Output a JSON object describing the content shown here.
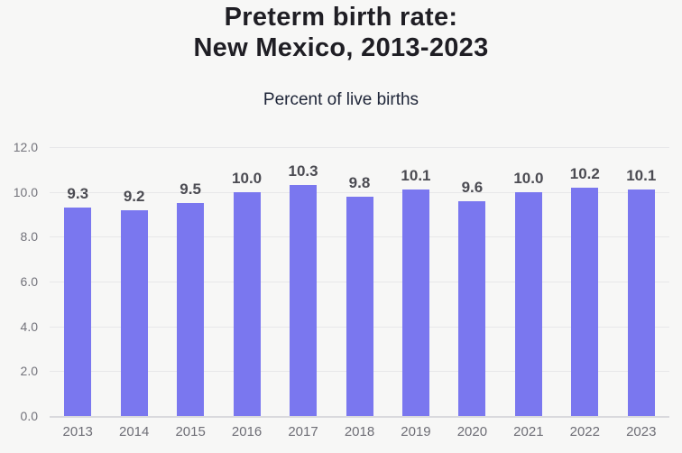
{
  "title": {
    "line1": "Preterm birth rate:",
    "line2": "New Mexico, 2013-2023"
  },
  "subtitle": "Percent of live births",
  "chart_data": {
    "type": "bar",
    "title": "Preterm birth rate: New Mexico, 2013-2023",
    "subtitle": "Percent of live births",
    "categories": [
      "2013",
      "2014",
      "2015",
      "2016",
      "2017",
      "2018",
      "2019",
      "2020",
      "2021",
      "2022",
      "2023"
    ],
    "values": [
      9.3,
      9.2,
      9.5,
      10.0,
      10.3,
      9.8,
      10.1,
      9.6,
      10.0,
      10.2,
      10.1
    ],
    "value_labels": [
      "9.3",
      "9.2",
      "9.5",
      "10.0",
      "10.3",
      "9.8",
      "10.1",
      "9.6",
      "10.0",
      "10.2",
      "10.1"
    ],
    "xlabel": "",
    "ylabel": "Percent of live births",
    "ylim": [
      0,
      12
    ],
    "ytick_step": 2,
    "ytick_labels": [
      "0.0",
      "2.0",
      "4.0",
      "6.0",
      "8.0",
      "10.0",
      "12.0"
    ],
    "grid": true,
    "legend": "none",
    "bar_color": "#7a77ef",
    "background_color": "#f7f7f6",
    "gridline_color": "#e7e7e9",
    "baseline_color": "#d9d9dd",
    "title_color": "#1f1e24",
    "subtitle_color": "#1e2538",
    "value_label_color": "#4b4b52",
    "axis_tick_color": "#73737b"
  }
}
